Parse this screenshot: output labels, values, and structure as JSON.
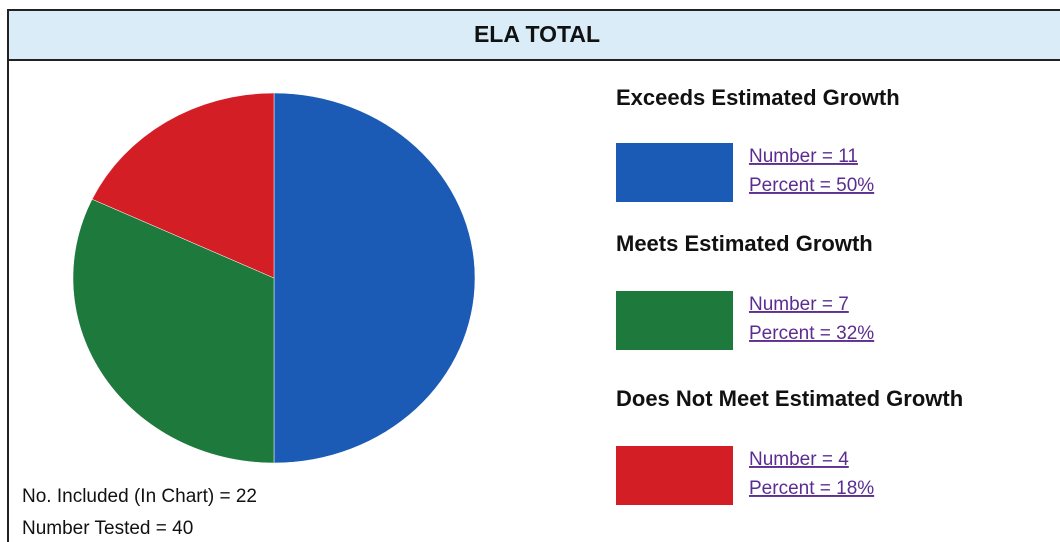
{
  "chart_data": {
    "type": "pie",
    "title": "ELA TOTAL",
    "categories": [
      "Exceeds Estimated Growth",
      "Meets Estimated Growth",
      "Does Not Meet Estimated Growth"
    ],
    "values": [
      50,
      32,
      18
    ],
    "value_labels": [
      "Percent = 50%",
      "Percent = 32%",
      "Percent = 18%"
    ],
    "count_labels": [
      "Number = 11",
      "Number = 7",
      "Number = 4"
    ],
    "colors": [
      "#1b5bb5",
      "#1e7a3c",
      "#d41e26"
    ],
    "notes": [
      "No. Included (In Chart) = 22",
      "Number Tested = 40"
    ]
  }
}
